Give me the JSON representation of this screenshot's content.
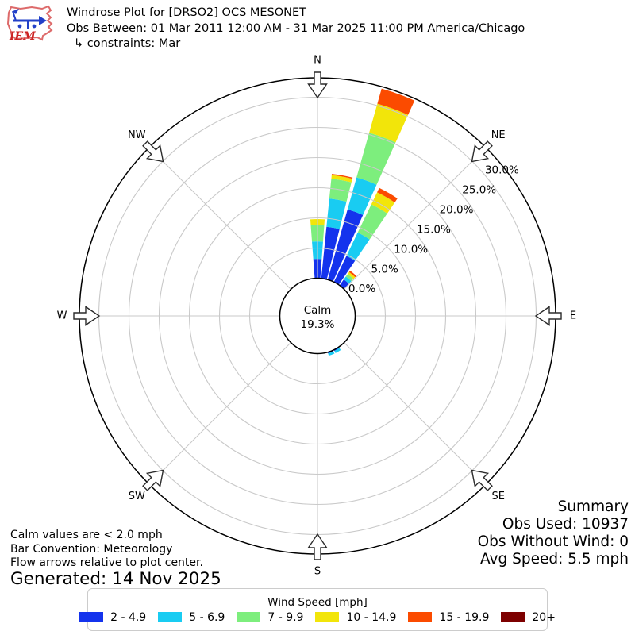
{
  "header": {
    "title": "Windrose Plot for [DRSO2] OCS MESONET",
    "obs_range": "Obs Between: 01 Mar 2011 12:00 AM - 31 Mar 2025 11:00 PM America/Chicago",
    "constraints": "↳ constraints: Mar",
    "logo_text": "IEM"
  },
  "chart_data": {
    "type": "windrose",
    "units": "mph",
    "direction_labels": [
      "N",
      "NE",
      "E",
      "SE",
      "S",
      "SW",
      "W",
      "NW"
    ],
    "direction_azimuths": [
      0,
      45,
      90,
      135,
      180,
      225,
      270,
      315
    ],
    "ring_labels": [
      "0.0%",
      "5.0%",
      "10.0%",
      "15.0%",
      "20.0%",
      "25.0%",
      "30.0%"
    ],
    "ring_percents": [
      0,
      5,
      10,
      15,
      20,
      25,
      30
    ],
    "axis_max_percent": 33,
    "calm": {
      "label": "Calm",
      "value": "19.3%"
    },
    "legend_title": "Wind Speed [mph]",
    "speed_bins": [
      {
        "label": "2 - 4.9",
        "color": "#1433ed"
      },
      {
        "label": "5 - 6.9",
        "color": "#19ccf2"
      },
      {
        "label": "7 - 9.9",
        "color": "#7dee7d"
      },
      {
        "label": "10 - 14.9",
        "color": "#f2e50a"
      },
      {
        "label": "15 - 19.9",
        "color": "#fb4b00"
      },
      {
        "label": "20+",
        "color": "#7d0000"
      }
    ],
    "bars": [
      {
        "azimuth_deg": 0,
        "values": [
          3.2,
          2.9,
          2.7,
          1.0,
          0,
          0
        ]
      },
      {
        "azimuth_deg": 10,
        "values": [
          8.6,
          4.7,
          3.3,
          0.6,
          0.2,
          0
        ]
      },
      {
        "azimuth_deg": 20,
        "values": [
          12.1,
          5.5,
          7.7,
          5.0,
          2.6,
          0
        ]
      },
      {
        "azimuth_deg": 30,
        "values": [
          4.8,
          4.3,
          5.2,
          2.2,
          0.8,
          0
        ]
      },
      {
        "azimuth_deg": 40,
        "values": [
          1.2,
          0.6,
          0.5,
          0.4,
          0.3,
          0
        ]
      },
      {
        "azimuth_deg": 150,
        "values": [
          0.2,
          0.4,
          0,
          0,
          0,
          0
        ]
      },
      {
        "azimuth_deg": 160,
        "values": [
          0.2,
          0.4,
          0,
          0,
          0,
          0
        ]
      }
    ],
    "grid_color": "#c9c9c9",
    "axis_color": "#000000"
  },
  "summary": {
    "title": "Summary",
    "obs_used": "Obs Used: 10937",
    "obs_without_wind": "Obs Without Wind: 0",
    "avg_speed": "Avg Speed: 5.5 mph"
  },
  "footnotes": {
    "calm": "Calm values are < 2.0 mph",
    "convention": "Bar Convention: Meteorology",
    "arrows": "Flow arrows relative to plot center.",
    "generated": "Generated: 14 Nov 2025"
  }
}
